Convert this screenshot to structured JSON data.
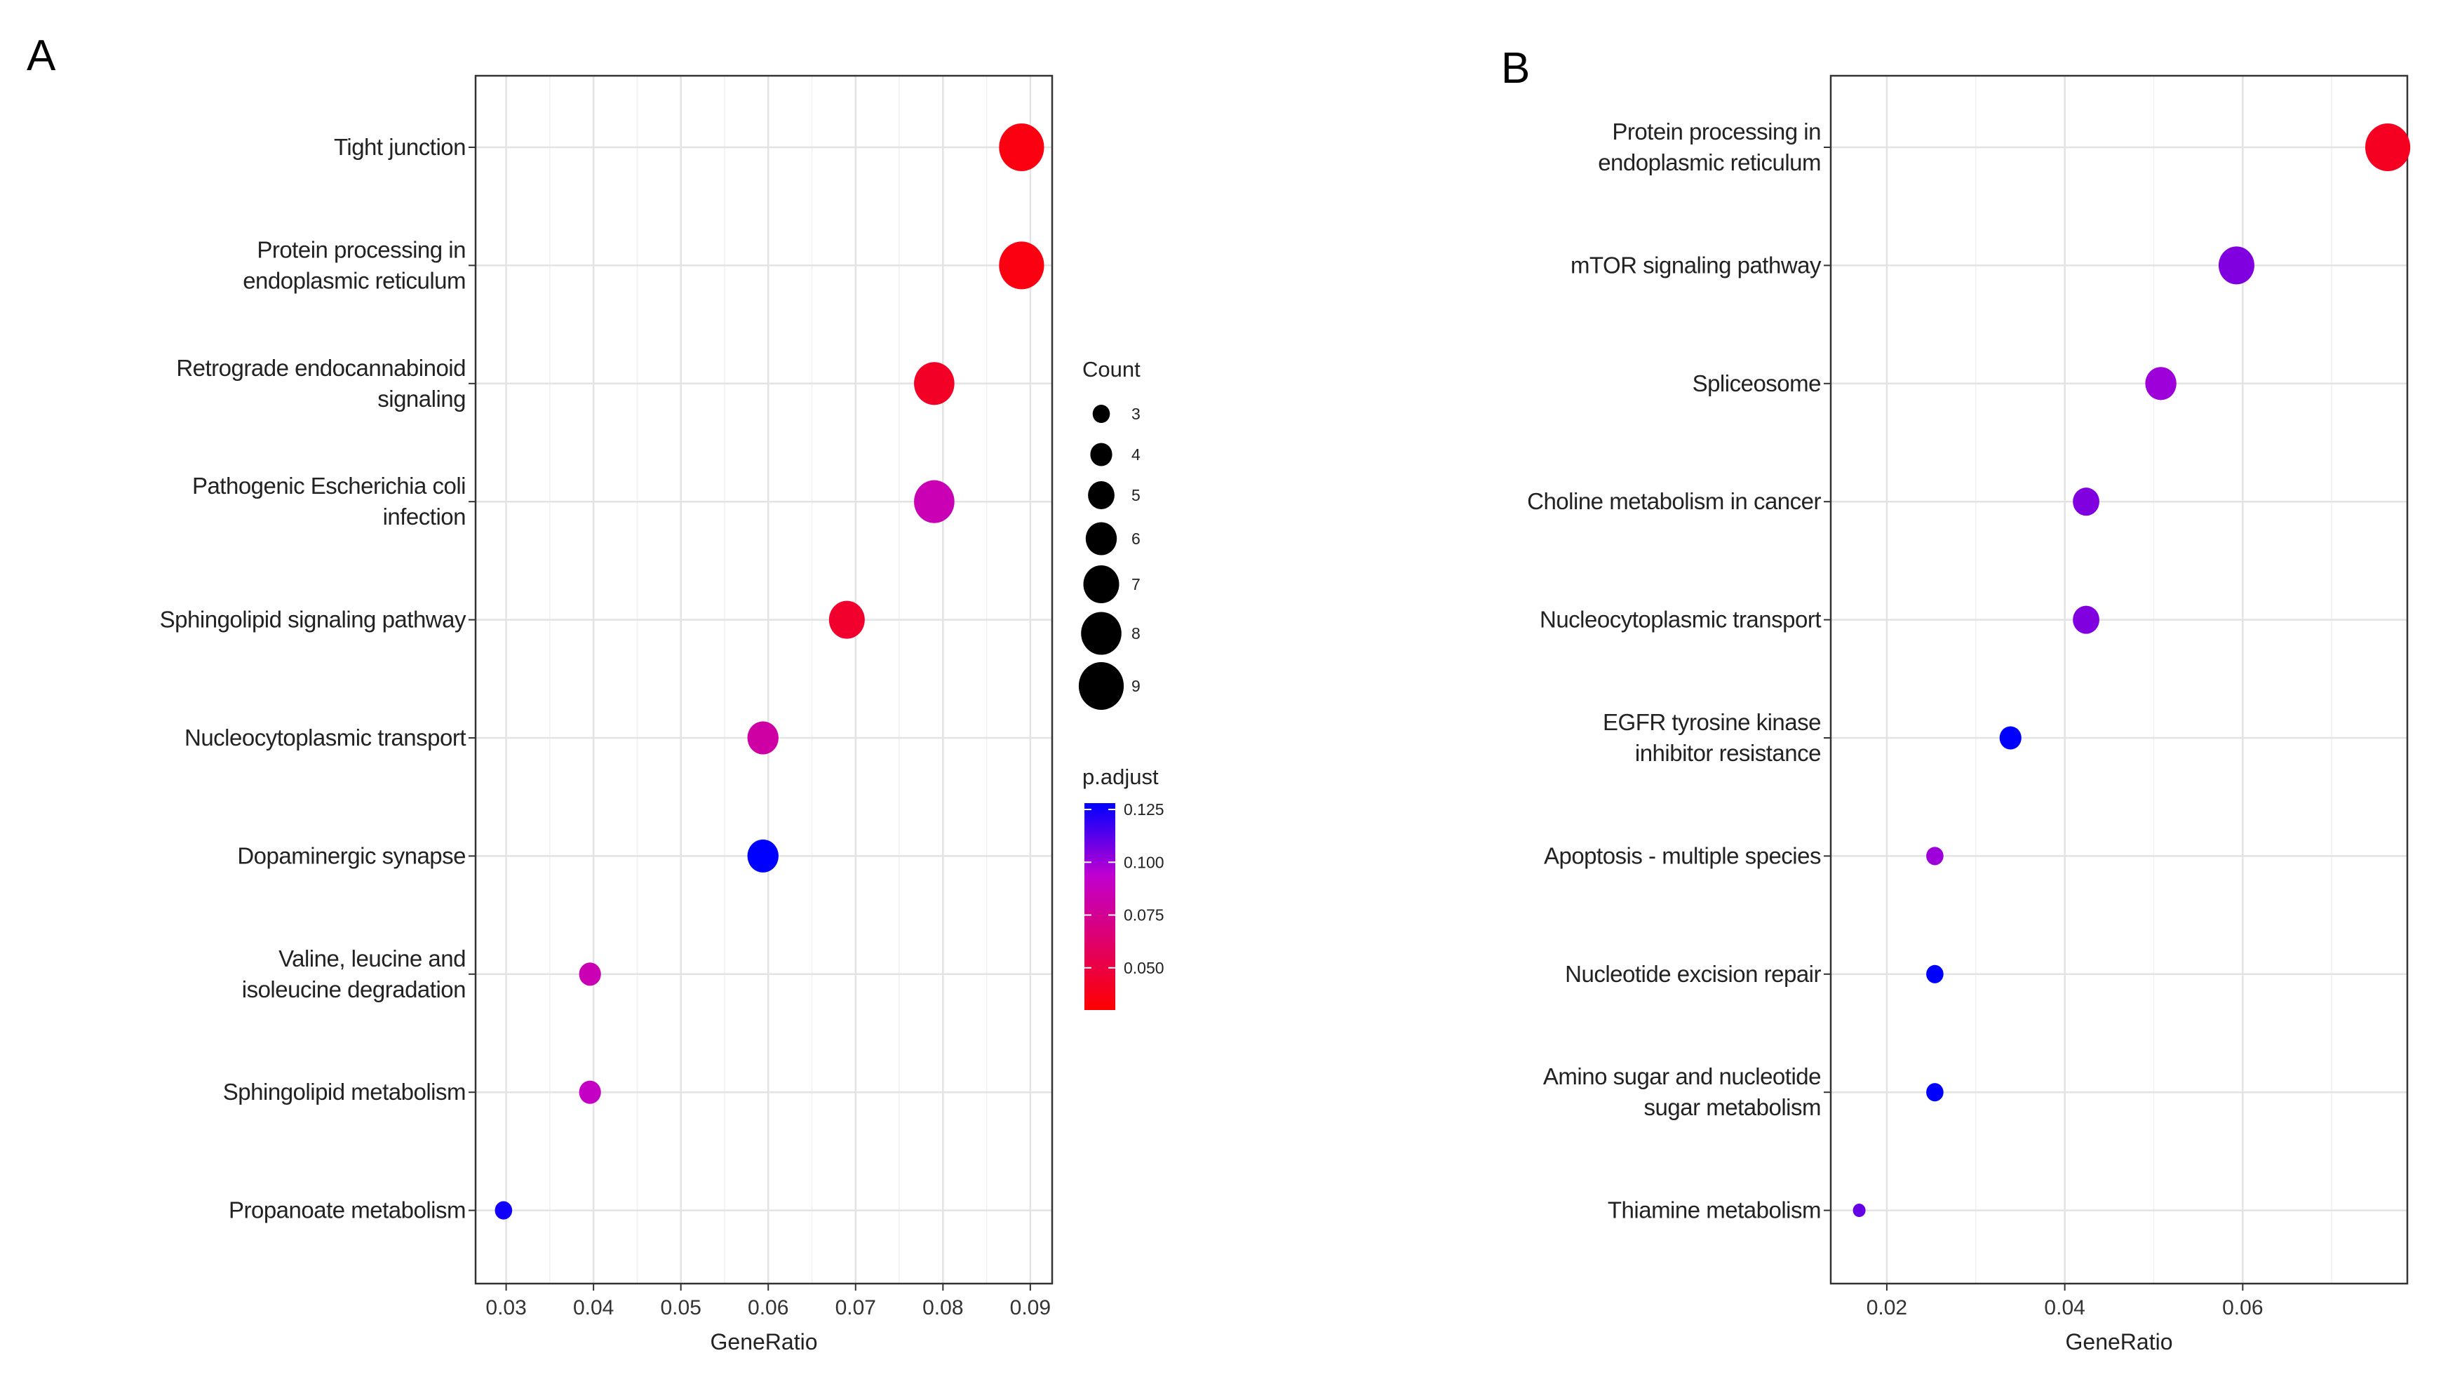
{
  "chart_data": [
    {
      "panel": "A",
      "type": "scatter",
      "title": "",
      "xlabel": "GeneRatio",
      "ylabel": "",
      "xlim": [
        0.0265,
        0.0925
      ],
      "xticks": [
        0.03,
        0.04,
        0.05,
        0.06,
        0.07,
        0.08,
        0.09
      ],
      "xtick_labels": [
        "0.03",
        "0.04",
        "0.05",
        "0.06",
        "0.07",
        "0.08",
        "0.09"
      ],
      "grid": true,
      "points": [
        {
          "term": [
            "Tight junction"
          ],
          "gene_ratio": 0.089,
          "count": 9,
          "p_adjust": 0.035
        },
        {
          "term": [
            "Protein processing in",
            "endoplasmic reticulum"
          ],
          "gene_ratio": 0.089,
          "count": 9,
          "p_adjust": 0.035
        },
        {
          "term": [
            "Retrograde endocannabinoid",
            "signaling"
          ],
          "gene_ratio": 0.079,
          "count": 8,
          "p_adjust": 0.042
        },
        {
          "term": [
            "Pathogenic Escherichia coli",
            "infection"
          ],
          "gene_ratio": 0.079,
          "count": 8,
          "p_adjust": 0.085
        },
        {
          "term": [
            "Sphingolipid signaling pathway"
          ],
          "gene_ratio": 0.069,
          "count": 7,
          "p_adjust": 0.044
        },
        {
          "term": [
            "Nucleocytoplasmic transport"
          ],
          "gene_ratio": 0.0594,
          "count": 6,
          "p_adjust": 0.08
        },
        {
          "term": [
            "Dopaminergic synapse"
          ],
          "gene_ratio": 0.0594,
          "count": 6,
          "p_adjust": 0.128
        },
        {
          "term": [
            "Valine, leucine and",
            "isoleucine degradation"
          ],
          "gene_ratio": 0.0396,
          "count": 4,
          "p_adjust": 0.085
        },
        {
          "term": [
            "Sphingolipid metabolism"
          ],
          "gene_ratio": 0.0396,
          "count": 4,
          "p_adjust": 0.09
        },
        {
          "term": [
            "Propanoate metabolism"
          ],
          "gene_ratio": 0.0297,
          "count": 3,
          "p_adjust": 0.125
        }
      ],
      "legend": {
        "size_title": "Count",
        "size_values": [
          3,
          4,
          5,
          6,
          7,
          8,
          9
        ],
        "color_title": "p.adjust",
        "color_ticks": [
          0.125,
          0.1,
          0.075,
          0.05
        ],
        "color_tick_labels": [
          "0.125",
          "0.100",
          "0.075",
          "0.050"
        ],
        "color_range": [
          0.03,
          0.128
        ],
        "color_low": "#ff0000",
        "color_mid": "#c000d0",
        "color_high": "#0000ff"
      }
    },
    {
      "panel": "B",
      "type": "scatter",
      "title": "",
      "xlabel": "GeneRatio",
      "ylabel": "",
      "xlim": [
        0.0137,
        0.0785
      ],
      "xticks": [
        0.02,
        0.04,
        0.06
      ],
      "xtick_labels": [
        "0.02",
        "0.04",
        "0.06"
      ],
      "grid": true,
      "points": [
        {
          "term": [
            "Protein processing in",
            "endoplasmic reticulum"
          ],
          "gene_ratio": 0.0763,
          "count": 9,
          "p_adjust": 0.04
        },
        {
          "term": [
            "mTOR signaling pathway"
          ],
          "gene_ratio": 0.0593,
          "count": 7,
          "p_adjust": 0.105
        },
        {
          "term": [
            "Spliceosome"
          ],
          "gene_ratio": 0.0508,
          "count": 6,
          "p_adjust": 0.1
        },
        {
          "term": [
            "Choline metabolism in cancer"
          ],
          "gene_ratio": 0.0424,
          "count": 5,
          "p_adjust": 0.105
        },
        {
          "term": [
            "Nucleocytoplasmic transport"
          ],
          "gene_ratio": 0.0424,
          "count": 5,
          "p_adjust": 0.105
        },
        {
          "term": [
            "EGFR tyrosine kinase",
            "inhibitor resistance"
          ],
          "gene_ratio": 0.0339,
          "count": 4,
          "p_adjust": 0.128
        },
        {
          "term": [
            "Apoptosis - multiple species"
          ],
          "gene_ratio": 0.0254,
          "count": 3,
          "p_adjust": 0.1
        },
        {
          "term": [
            "Nucleotide excision repair"
          ],
          "gene_ratio": 0.0254,
          "count": 3,
          "p_adjust": 0.128
        },
        {
          "term": [
            "Amino sugar and nucleotide",
            "sugar metabolism"
          ],
          "gene_ratio": 0.0254,
          "count": 3,
          "p_adjust": 0.128
        },
        {
          "term": [
            "Thiamine metabolism"
          ],
          "gene_ratio": 0.0169,
          "count": 2,
          "p_adjust": 0.11
        }
      ]
    }
  ]
}
